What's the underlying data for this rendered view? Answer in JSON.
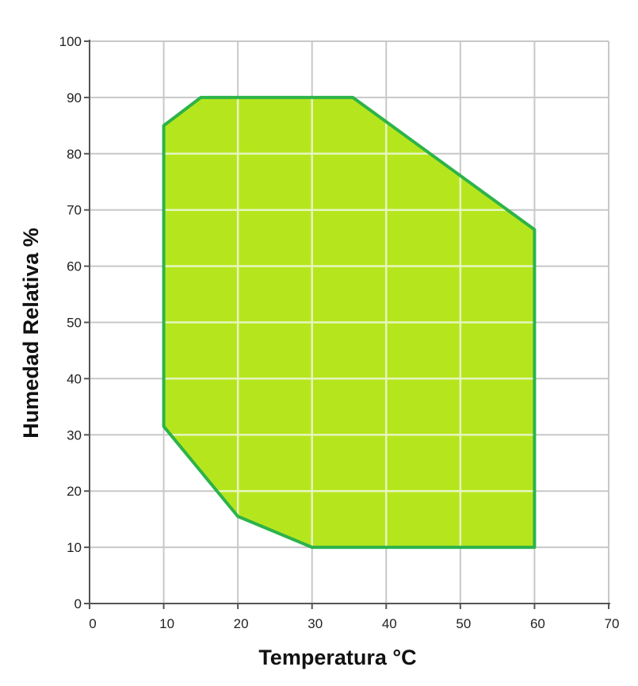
{
  "chart_data": {
    "type": "area",
    "title": "",
    "xlabel": "Temperatura °C",
    "ylabel": "Humedad Relativa %",
    "xlim": [
      0,
      70
    ],
    "ylim": [
      0,
      100
    ],
    "x_ticks": [
      0,
      10,
      20,
      30,
      40,
      50,
      60,
      70
    ],
    "y_ticks": [
      0,
      10,
      20,
      30,
      40,
      50,
      60,
      70,
      80,
      90,
      100
    ],
    "grid": true,
    "series": [
      {
        "polygon": [
          {
            "x": 10,
            "y": 85
          },
          {
            "x": 15,
            "y": 90
          },
          {
            "x": 35.5,
            "y": 90
          },
          {
            "x": 60,
            "y": 66.5
          },
          {
            "x": 60,
            "y": 10
          },
          {
            "x": 30,
            "y": 10
          },
          {
            "x": 20,
            "y": 15.5
          },
          {
            "x": 10,
            "y": 31.5
          }
        ],
        "fill_color": "#b5e61d",
        "stroke_color": "#2db34a"
      }
    ],
    "grid_color": "#c8c8c8"
  }
}
